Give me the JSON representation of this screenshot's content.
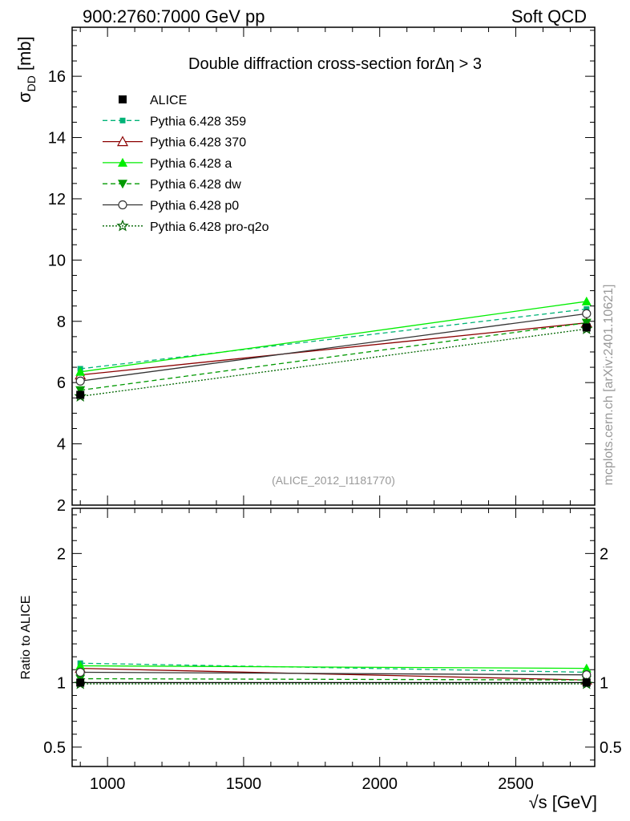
{
  "header": {
    "left": "900:2760:7000 GeV pp",
    "right": "Soft QCD"
  },
  "watermark": "mcplots.cern.ch [arXiv:2401.10621]",
  "chart_data": [
    {
      "type": "line",
      "title": "Double diffraction cross-section forΔη > 3",
      "ylabel_main": "σ",
      "ylabel_sub": "DD",
      "ylabel_unit": " [mb]",
      "reference": "(ALICE_2012_I1181770)",
      "xlim": [
        870,
        2790
      ],
      "ylim": [
        2,
        17.6
      ],
      "y_ticks": [
        2,
        4,
        6,
        8,
        10,
        12,
        14,
        16
      ],
      "x": [
        900,
        2760
      ],
      "legend_placement": "top-left",
      "series": [
        {
          "name": "ALICE",
          "values": [
            5.6,
            7.8
          ],
          "color": "#000000",
          "marker": "square-filled",
          "dash": "none",
          "is_data": true
        },
        {
          "name": "Pythia 6.428 359",
          "values": [
            6.45,
            8.4
          ],
          "color": "#00b377",
          "marker": "square-filled-small",
          "dash": "6,4"
        },
        {
          "name": "Pythia 6.428 370",
          "values": [
            6.25,
            7.95
          ],
          "color": "#8b0000",
          "marker": "triangle-open",
          "dash": "none"
        },
        {
          "name": "Pythia 6.428 a",
          "values": [
            6.35,
            8.65
          ],
          "color": "#00ee00",
          "marker": "triangle-filled",
          "dash": "none"
        },
        {
          "name": "Pythia 6.428 dw",
          "values": [
            5.75,
            7.95
          ],
          "color": "#009900",
          "marker": "triangle-down-filled",
          "dash": "6,4"
        },
        {
          "name": "Pythia 6.428 p0",
          "values": [
            6.05,
            8.25
          ],
          "color": "#333333",
          "marker": "circle-open",
          "dash": "none"
        },
        {
          "name": "Pythia 6.428 pro-q2o",
          "values": [
            5.55,
            7.75
          ],
          "color": "#006600",
          "marker": "star-open",
          "dash": "2,2"
        }
      ]
    },
    {
      "type": "line",
      "ylabel": "Ratio to ALICE",
      "xlabel": "√s [GeV]",
      "xlim": [
        870,
        2790
      ],
      "ylim": [
        0.35,
        2.35
      ],
      "x_ticks": [
        1000,
        1500,
        2000,
        2500
      ],
      "y_ticks": [
        0.5,
        1,
        2
      ],
      "x": [
        900,
        2760
      ],
      "series": [
        {
          "name": "ALICE",
          "values": [
            1.0,
            1.0
          ]
        },
        {
          "name": "Pythia 6.428 359",
          "values": [
            1.15,
            1.08
          ]
        },
        {
          "name": "Pythia 6.428 370",
          "values": [
            1.11,
            1.02
          ]
        },
        {
          "name": "Pythia 6.428 a",
          "values": [
            1.13,
            1.11
          ]
        },
        {
          "name": "Pythia 6.428 dw",
          "values": [
            1.03,
            1.02
          ]
        },
        {
          "name": "Pythia 6.428 p0",
          "values": [
            1.08,
            1.06
          ]
        },
        {
          "name": "Pythia 6.428 pro-q2o",
          "values": [
            0.99,
            0.99
          ]
        }
      ]
    }
  ]
}
